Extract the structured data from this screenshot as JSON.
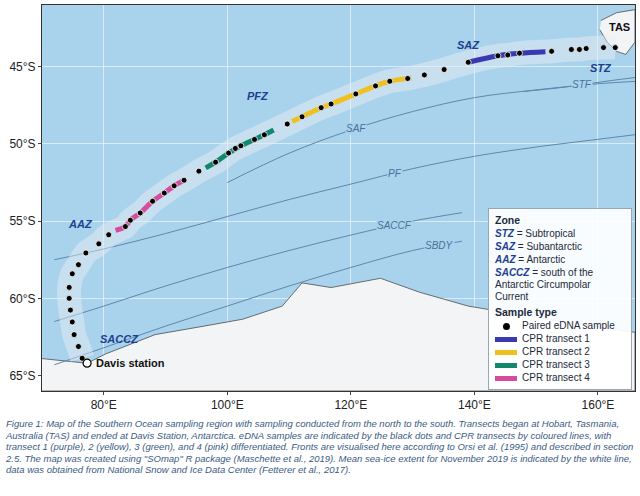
{
  "chart_data": {
    "type": "scatter",
    "xlim": [
      70,
      166
    ],
    "xticks": [
      {
        "value": 80,
        "label": "80°E"
      },
      {
        "value": 100,
        "label": "100°E"
      },
      {
        "value": 120,
        "label": "120°E"
      },
      {
        "value": 140,
        "label": "140°E"
      },
      {
        "value": 160,
        "label": "160°E"
      }
    ],
    "ylim": [
      -66,
      -41
    ],
    "yticks": [
      {
        "value": -45,
        "label": "45°S"
      },
      {
        "value": -50,
        "label": "50°S"
      },
      {
        "value": -55,
        "label": "55°S"
      },
      {
        "value": -60,
        "label": "60°S"
      },
      {
        "value": -65,
        "label": "65°S"
      }
    ],
    "grid": true,
    "legend": "bottom right",
    "series": [
      {
        "name": "Paired eDNA sample",
        "color": "#000000",
        "marker": "circle",
        "x": [
          162.8,
          160.9,
          158.1,
          157.0,
          155.7,
          152.5,
          147.3,
          145.4,
          143.8,
          139.0,
          135.1,
          131.9,
          129.2,
          126.3,
          124.0,
          120.8,
          116.8,
          115.2,
          112.1,
          109.7,
          106.0,
          104.4,
          102.2,
          101.3,
          100.2,
          98.1,
          95.4,
          93.0,
          91.4,
          89.8,
          87.9,
          85.9,
          84.3,
          83.5,
          80.8,
          79.2,
          77.1,
          75.9,
          74.9,
          74.4,
          74.4,
          74.6,
          74.9,
          75.2,
          75.9,
          76.5
        ],
        "y": [
          -43.76,
          -43.76,
          -43.82,
          -43.88,
          -43.88,
          -44.0,
          -44.12,
          -44.24,
          -44.29,
          -44.71,
          -45.18,
          -45.53,
          -45.76,
          -45.94,
          -46.24,
          -46.76,
          -47.41,
          -47.65,
          -48.24,
          -48.71,
          -49.41,
          -49.71,
          -50.12,
          -50.29,
          -50.59,
          -51.18,
          -51.76,
          -52.35,
          -52.71,
          -53.18,
          -53.71,
          -54.47,
          -54.94,
          -55.35,
          -55.88,
          -56.47,
          -57.06,
          -57.82,
          -58.41,
          -59.29,
          -60.0,
          -60.76,
          -61.53,
          -62.35,
          -63.12,
          -63.88
        ]
      },
      {
        "name": "CPR transect 1",
        "color": "#3a3ab0",
        "line_style": "solid",
        "x": [
          139.0,
          143.8,
          147.3,
          151.5
        ],
        "y": [
          -44.71,
          -44.29,
          -44.12,
          -44.02
        ]
      },
      {
        "name": "CPR transect 2",
        "color": "#f0c020",
        "line_style": "solid",
        "x": [
          110.5,
          112.1,
          115.2,
          116.8,
          120.8,
          124.0,
          126.3,
          129.8
        ],
        "y": [
          -48.55,
          -48.24,
          -47.65,
          -47.41,
          -46.76,
          -46.24,
          -45.94,
          -45.72
        ]
      },
      {
        "name": "CPR transect 3",
        "color": "#11876b",
        "line_style": "solid",
        "x": [
          96.5,
          98.1,
          100.2,
          102.2,
          104.4,
          106.0,
          107.5
        ],
        "y": [
          -51.55,
          -51.18,
          -50.59,
          -50.12,
          -49.71,
          -49.41,
          -49.1
        ]
      },
      {
        "name": "CPR transect 4",
        "color": "#d64c9c",
        "line_style": "solid",
        "x": [
          81.9,
          83.5,
          84.3,
          85.9,
          87.9,
          89.8,
          91.4,
          93.0
        ],
        "y": [
          -55.6,
          -55.35,
          -54.94,
          -54.47,
          -53.71,
          -53.18,
          -52.71,
          -52.35
        ]
      }
    ],
    "fronts": [
      {
        "label": "STF",
        "x": [
          148,
          155,
          162,
          166
        ],
        "y": [
          -46.6,
          -46.3,
          -45.9,
          -45.7
        ],
        "label_x": 157.5,
        "label_y": -46.15
      },
      {
        "label": "SAF",
        "x": [
          100,
          110,
          120,
          130,
          140,
          150,
          160,
          166
        ],
        "y": [
          -52.5,
          -50.6,
          -49.1,
          -47.9,
          -47.0,
          -46.5,
          -46.1,
          -45.95
        ],
        "label_x": 120.8,
        "label_y": -49.0
      },
      {
        "label": "PF",
        "x": [
          72,
          80,
          90,
          100,
          110,
          120,
          130,
          140,
          150,
          160,
          166
        ],
        "y": [
          -57.5,
          -56.8,
          -55.8,
          -54.7,
          -53.6,
          -52.6,
          -51.6,
          -50.8,
          -50.2,
          -49.7,
          -49.4
        ],
        "label_x": 127.1,
        "label_y": -51.9
      },
      {
        "label": "SACCF",
        "x": [
          72,
          80,
          90,
          100,
          110,
          120,
          130,
          138
        ],
        "y": [
          -61.5,
          -60.5,
          -59.2,
          -58.0,
          -56.9,
          -55.9,
          -55.0,
          -54.45
        ],
        "label_x": 127.1,
        "label_y": -55.27
      },
      {
        "label": "SBDY",
        "x": [
          72,
          80,
          90,
          100,
          110,
          120,
          130,
          138
        ],
        "y": [
          -64.3,
          -63.2,
          -61.8,
          -60.5,
          -59.2,
          -58.0,
          -56.9,
          -56.3
        ],
        "label_x": 134.3,
        "label_y": -56.6
      }
    ],
    "zones": [
      {
        "text": "STZ",
        "x": 160.5,
        "y": -45.1
      },
      {
        "text": "SAZ",
        "x": 139.0,
        "y": -43.6
      },
      {
        "text": "PFZ",
        "x": 104.9,
        "y": -46.9
      },
      {
        "text": "AAZ",
        "x": 76.3,
        "y": -55.2
      },
      {
        "text": "SACCZ",
        "x": 79.0,
        "y": -62.6
      }
    ],
    "places": [
      {
        "text": "TAS",
        "x": 163.5,
        "y": -42.4
      },
      {
        "text": "Davis station",
        "x": 77.3,
        "y": -64.2,
        "marker": "circle"
      }
    ],
    "land": [
      {
        "x": [
          70,
          77.3,
          80.3,
          88.3,
          96.2,
          102.5,
          108.9,
          112.1,
          116.8,
          124.8,
          131.1,
          139.0,
          151.7,
          166,
          166,
          70
        ],
        "y": [
          -63.9,
          -64.2,
          -63.6,
          -62.35,
          -61.8,
          -61.35,
          -60.5,
          -59.0,
          -59.3,
          -58.7,
          -59.6,
          -60.5,
          -61.35,
          -62.2,
          -66,
          -66
        ]
      },
      {
        "x": [
          160.5,
          163,
          166,
          166,
          164.5,
          163,
          161.5,
          160.3
        ],
        "y": [
          -42.0,
          -41.5,
          -41.3,
          -43.4,
          -44.2,
          -44.0,
          -43.4,
          -42.6
        ]
      }
    ],
    "zone_key": {
      "title": "Zone",
      "items": [
        {
          "abbr": "STZ",
          "text": "= Subtropical"
        },
        {
          "abbr": "SAZ",
          "text": "= Subantarctic"
        },
        {
          "abbr": "AAZ",
          "text": "= Antarctic"
        },
        {
          "abbr": "SACCZ",
          "text": "= south of the Antarctic Circumpolar Current"
        }
      ]
    },
    "legend_title": "Sample type",
    "caption": "Figure 1: Map of the Southern Ocean sampling region with sampling conducted from the north to the south. Transects began at Hobart, Tasmania, Australia (TAS) and ended at Davis Station, Antarctica. eDNA samples are indicated by the black dots and CPR transects by coloured lines, with transect 1 (purple), 2 (yellow), 3 (green), and 4 (pink) differentiated. Fronts are visualised here according to Orsi et al. (1995) and described in section 2.5. The map was created using \"SOmap\" R package (Maschette et al., 2019). Mean sea-ice extent for November 2019 is indicated by the white line, data was obtained from National Snow and Ice Data Center (Fetterer et al., 2017)."
  }
}
